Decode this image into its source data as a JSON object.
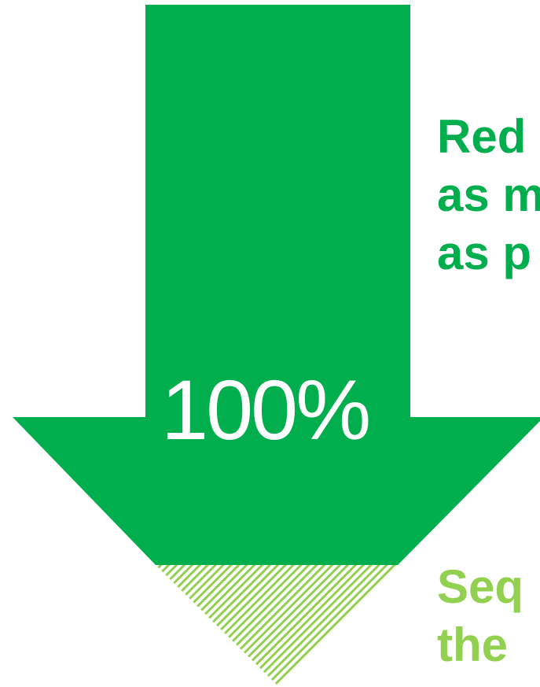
{
  "arrow": {
    "percent_label": "100%"
  },
  "texts": {
    "top_lines": [
      "Red",
      "as m",
      "as p"
    ],
    "bottom_lines": [
      "Seq",
      "the"
    ]
  },
  "colors": {
    "arrow_green": "#00ae4d",
    "hatch_green": "#92d050",
    "background": "#ffffff"
  }
}
